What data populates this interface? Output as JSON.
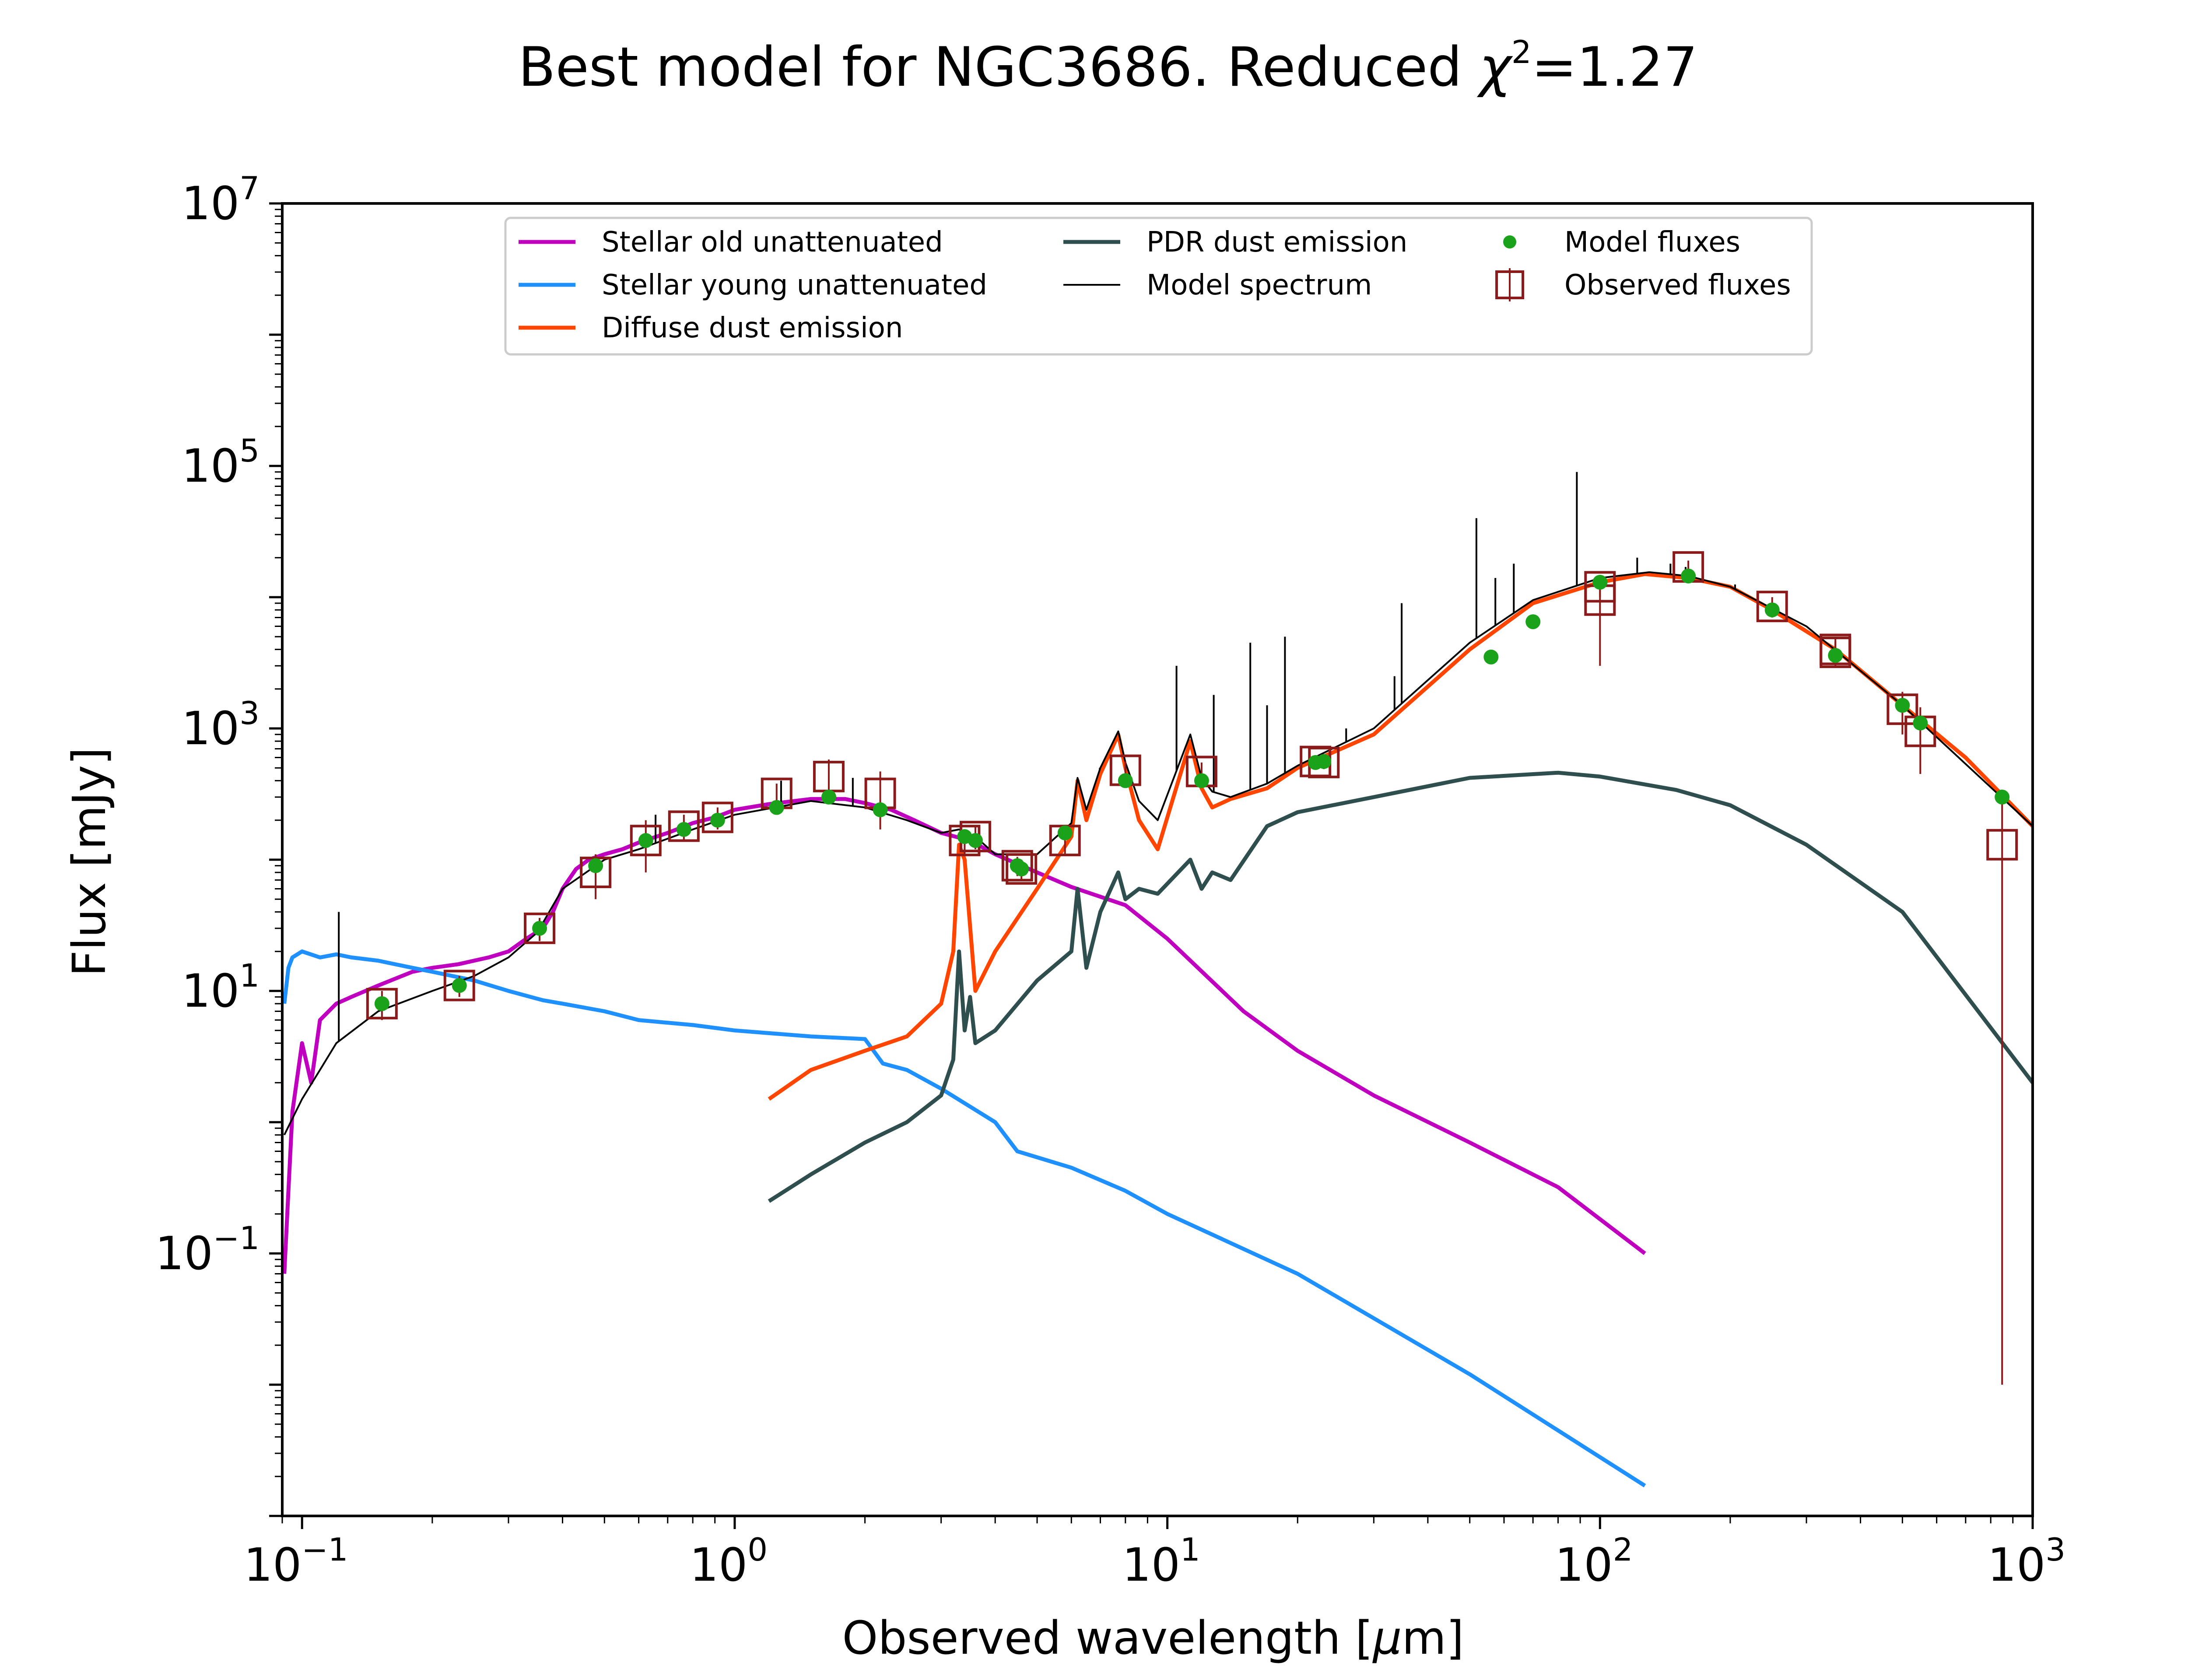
{
  "chart_data": {
    "type": "line",
    "title": "Best model for NGC3686. Reduced χ²=1.27",
    "title_prefix": "Best model for NGC3686. Reduced ",
    "title_chi": "χ",
    "title_sup": "2",
    "title_suffix": "=1.27",
    "xlabel": "Observed wavelength [μm]",
    "xlabel_prefix": "Observed wavelength [",
    "xlabel_mu": "μ",
    "xlabel_suffix": "m]",
    "ylabel": "Flux [mJy]",
    "xscale": "log",
    "yscale": "log",
    "xlim": [
      0.09,
      1000
    ],
    "ylim": [
      0.001,
      10000000
    ],
    "grid": false,
    "legend_position": "top",
    "x_ticks": [
      {
        "value": 0.1,
        "base": "10",
        "exp": "−1"
      },
      {
        "value": 1,
        "base": "10",
        "exp": "0"
      },
      {
        "value": 10,
        "base": "10",
        "exp": "1"
      },
      {
        "value": 100,
        "base": "10",
        "exp": "2"
      },
      {
        "value": 1000,
        "base": "10",
        "exp": "3"
      }
    ],
    "y_ticks": [
      {
        "value": 0.1,
        "base": "10",
        "exp": "−1"
      },
      {
        "value": 10,
        "base": "10",
        "exp": "1"
      },
      {
        "value": 1000,
        "base": "10",
        "exp": "3"
      },
      {
        "value": 100000,
        "base": "10",
        "exp": "5"
      },
      {
        "value": 10000000,
        "base": "10",
        "exp": "7"
      }
    ],
    "series": [
      {
        "name": "Stellar old unattenuated",
        "color": "#bf00bf",
        "x": [
          0.091,
          0.093,
          0.095,
          0.1,
          0.105,
          0.11,
          0.12,
          0.13,
          0.15,
          0.18,
          0.2,
          0.23,
          0.27,
          0.3,
          0.33,
          0.36,
          0.38,
          0.4,
          0.43,
          0.46,
          0.5,
          0.55,
          0.6,
          0.7,
          0.8,
          0.9,
          1.0,
          1.2,
          1.5,
          1.8,
          2.0,
          2.3,
          2.6,
          3.0,
          3.5,
          4.0,
          5.0,
          6.0,
          8.0,
          10,
          15,
          20,
          30,
          50,
          80,
          127
        ],
        "y": [
          0.07,
          0.3,
          1.2,
          4,
          2,
          6,
          8,
          9,
          11,
          14,
          15,
          16,
          18,
          20,
          25,
          30,
          40,
          60,
          85,
          100,
          110,
          120,
          135,
          160,
          190,
          210,
          240,
          265,
          290,
          290,
          270,
          240,
          200,
          160,
          140,
          110,
          80,
          62,
          45,
          25,
          7,
          3.5,
          1.6,
          0.7,
          0.32,
          0.1
        ]
      },
      {
        "name": "Stellar young unattenuated",
        "color": "#1e90ff",
        "x": [
          0.091,
          0.093,
          0.095,
          0.1,
          0.11,
          0.12,
          0.13,
          0.15,
          0.18,
          0.2,
          0.25,
          0.3,
          0.36,
          0.4,
          0.5,
          0.6,
          0.8,
          1.0,
          1.5,
          2.0,
          2.2,
          2.5,
          3.0,
          4.0,
          4.5,
          6.0,
          8.0,
          10,
          20,
          50,
          127
        ],
        "y": [
          8,
          15,
          18,
          20,
          18,
          19,
          18,
          17,
          15,
          14,
          12,
          10,
          8.5,
          8,
          7,
          6,
          5.5,
          5,
          4.5,
          4.3,
          2.8,
          2.5,
          1.8,
          1.0,
          0.6,
          0.45,
          0.3,
          0.2,
          0.07,
          0.012,
          0.0017
        ]
      },
      {
        "name": "Diffuse dust emission",
        "color": "#ff4500",
        "x": [
          1.2,
          1.5,
          2.0,
          2.5,
          3.0,
          3.2,
          3.3,
          3.4,
          3.6,
          4.0,
          5.0,
          6.0,
          6.2,
          6.5,
          7.0,
          7.7,
          8.0,
          8.6,
          9.5,
          11.3,
          12.0,
          12.7,
          14.0,
          17.0,
          20,
          30,
          50,
          70,
          100,
          127,
          160,
          200,
          250,
          350,
          500,
          700,
          1000
        ],
        "y": [
          1.5,
          2.5,
          3.5,
          4.5,
          8,
          20,
          130,
          100,
          10,
          20,
          60,
          150,
          400,
          200,
          450,
          900,
          500,
          200,
          120,
          800,
          350,
          250,
          290,
          350,
          500,
          900,
          4000,
          9000,
          13000,
          15000,
          14000,
          12000,
          8000,
          4000,
          1500,
          600,
          180
        ]
      },
      {
        "name": "PDR dust emission",
        "color": "#2f4f4f",
        "x": [
          1.2,
          1.5,
          2.0,
          2.5,
          3.0,
          3.2,
          3.3,
          3.4,
          3.5,
          3.6,
          4.0,
          5.0,
          6.0,
          6.2,
          6.5,
          7.0,
          7.7,
          8.0,
          8.6,
          9.5,
          11.3,
          12.0,
          12.7,
          14.0,
          17.0,
          20,
          30,
          50,
          80,
          100,
          150,
          200,
          300,
          500,
          1000
        ],
        "y": [
          0.25,
          0.4,
          0.7,
          1.0,
          1.6,
          3,
          20,
          5,
          9,
          4,
          5,
          12,
          20,
          60,
          15,
          40,
          80,
          50,
          60,
          55,
          100,
          60,
          80,
          70,
          180,
          230,
          300,
          420,
          460,
          430,
          340,
          260,
          130,
          40,
          2
        ]
      },
      {
        "name": "Model spectrum",
        "color": "#000000",
        "x": [
          0.091,
          0.1,
          0.11,
          0.12,
          0.15,
          0.2,
          0.25,
          0.3,
          0.35,
          0.4,
          0.5,
          0.6,
          0.8,
          1.0,
          1.5,
          2.0,
          2.5,
          3.0,
          3.3,
          3.6,
          4.0,
          5.0,
          6.0,
          6.2,
          6.5,
          7.0,
          7.7,
          8.0,
          8.6,
          9.5,
          11.3,
          12.0,
          12.7,
          14.0,
          17.0,
          20,
          30,
          50,
          70,
          100,
          130,
          160,
          200,
          300,
          500,
          1000
        ],
        "y": [
          0.8,
          1.5,
          2.5,
          4,
          7,
          10,
          13,
          18,
          28,
          60,
          100,
          120,
          170,
          220,
          280,
          250,
          200,
          160,
          170,
          150,
          110,
          110,
          190,
          420,
          240,
          500,
          950,
          550,
          280,
          200,
          900,
          420,
          330,
          300,
          380,
          520,
          1000,
          4500,
          9500,
          14000,
          15500,
          14500,
          12000,
          6000,
          1500,
          180
        ]
      }
    ],
    "model_fluxes": {
      "name": "Model fluxes",
      "color": "#1aa31a",
      "x": [
        0.153,
        0.231,
        0.354,
        0.477,
        0.623,
        0.763,
        0.913,
        1.25,
        1.65,
        2.17,
        3.4,
        3.6,
        4.5,
        4.6,
        5.8,
        8.0,
        12.0,
        22.0,
        23.0,
        56.0,
        70.0,
        100.0,
        160.0,
        250.0,
        350.0,
        500.0,
        550.0,
        850.0
      ],
      "y": [
        8,
        11,
        30,
        90,
        140,
        170,
        200,
        250,
        300,
        240,
        150,
        140,
        90,
        85,
        160,
        400,
        400,
        550,
        560,
        3500,
        6500,
        13000,
        14500,
        8000,
        3600,
        1500,
        1100,
        300
      ]
    },
    "observed_fluxes": {
      "name": "Observed fluxes",
      "color": "#8b1a1a",
      "x": [
        0.153,
        0.231,
        0.354,
        0.477,
        0.623,
        0.763,
        0.913,
        1.25,
        1.65,
        2.17,
        3.4,
        3.6,
        4.5,
        4.6,
        5.8,
        8.0,
        12.0,
        22.0,
        23.0,
        100.0,
        100.0,
        160.0,
        250.0,
        350.0,
        350.0,
        500.0,
        550.0,
        850.0
      ],
      "y": [
        8,
        11,
        30,
        80,
        140,
        180,
        210,
        320,
        430,
        320,
        140,
        150,
        90,
        85,
        140,
        480,
        470,
        560,
        550,
        12000,
        9500,
        17000,
        8500,
        4000,
        3800,
        1400,
        950,
        130
      ],
      "err_low": [
        2,
        2,
        6,
        30,
        60,
        40,
        40,
        60,
        150,
        150,
        30,
        30,
        15,
        15,
        30,
        80,
        80,
        60,
        60,
        2000,
        6500,
        2000,
        1500,
        800,
        800,
        500,
        500,
        129.99
      ],
      "err_high": [
        2,
        2,
        6,
        30,
        60,
        40,
        40,
        60,
        150,
        150,
        30,
        30,
        15,
        15,
        30,
        80,
        80,
        60,
        60,
        2000,
        2000,
        2000,
        1500,
        800,
        800,
        500,
        500,
        200
      ]
    },
    "emission_lines": [
      {
        "x": 0.1216,
        "y": 40
      },
      {
        "x": 0.6563,
        "y": 220
      },
      {
        "x": 1.875,
        "y": 420
      },
      {
        "x": 1.28,
        "y": 400
      },
      {
        "x": 6.98,
        "y": 500
      },
      {
        "x": 10.5,
        "y": 3000
      },
      {
        "x": 12.8,
        "y": 1800
      },
      {
        "x": 15.55,
        "y": 4500
      },
      {
        "x": 17.0,
        "y": 1500
      },
      {
        "x": 18.7,
        "y": 5000
      },
      {
        "x": 25.9,
        "y": 1000
      },
      {
        "x": 33.5,
        "y": 2500
      },
      {
        "x": 34.8,
        "y": 9000
      },
      {
        "x": 51.8,
        "y": 40000
      },
      {
        "x": 57.3,
        "y": 14000
      },
      {
        "x": 63.2,
        "y": 18000
      },
      {
        "x": 88.4,
        "y": 90000
      },
      {
        "x": 121.9,
        "y": 20000
      },
      {
        "x": 145.5,
        "y": 18000
      },
      {
        "x": 157.7,
        "y": 17000
      },
      {
        "x": 205.2,
        "y": 12500
      }
    ]
  }
}
